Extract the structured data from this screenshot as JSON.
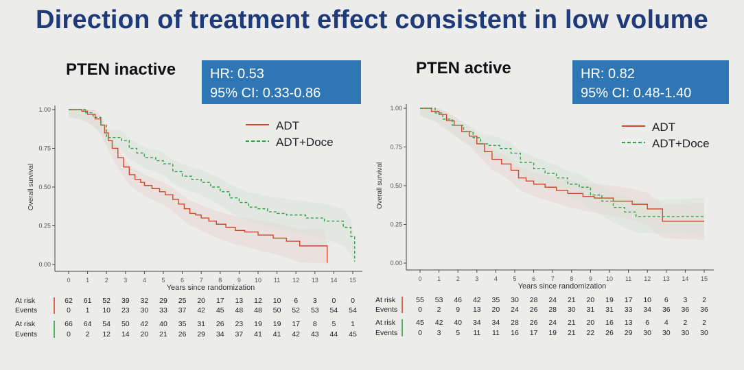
{
  "slide": {
    "title": "Direction of treatment effect consistent in low volume"
  },
  "panels": [
    {
      "title": "PTEN inactive",
      "hr_line1": "HR: 0.53",
      "hr_line2": "95% CI: 0.33-0.86"
    },
    {
      "title": "PTEN active",
      "hr_line1": "HR: 0.82",
      "hr_line2": "95% CI: 0.48-1.40"
    }
  ],
  "chart_data": [
    {
      "type": "line",
      "xlabel": "Years since randomization",
      "ylabel": "Overall survival",
      "xlim": [
        0,
        15
      ],
      "ylim": [
        0,
        1
      ],
      "x_ticks": [
        "0",
        "1",
        "2",
        "3",
        "4",
        "5",
        "6",
        "7",
        "8",
        "9",
        "10",
        "11",
        "12",
        "13",
        "14",
        "15"
      ],
      "y_ticks": [
        "0.00",
        "0.25",
        "0.50",
        "0.75",
        "1.00"
      ],
      "legend_position": "top-right",
      "series": [
        {
          "name": "ADT",
          "color": "#d0472b",
          "style": "solid",
          "x": [
            0,
            0.7,
            1.0,
            1.4,
            1.7,
            1.9,
            2.1,
            2.3,
            2.6,
            2.9,
            3.2,
            3.5,
            3.8,
            4.0,
            4.4,
            4.8,
            5.1,
            5.5,
            5.8,
            6.1,
            6.4,
            6.7,
            7.0,
            7.4,
            7.8,
            8.3,
            8.8,
            9.3,
            10.0,
            10.8,
            11.5,
            12.2,
            13.5,
            13.65
          ],
          "y": [
            1.0,
            0.99,
            0.97,
            0.94,
            0.9,
            0.85,
            0.8,
            0.75,
            0.69,
            0.63,
            0.58,
            0.55,
            0.53,
            0.51,
            0.49,
            0.47,
            0.45,
            0.42,
            0.39,
            0.36,
            0.33,
            0.32,
            0.3,
            0.28,
            0.26,
            0.24,
            0.22,
            0.21,
            0.19,
            0.17,
            0.15,
            0.12,
            0.12,
            0.01
          ]
        },
        {
          "name": "ADT+Doce",
          "color": "#2e9e48",
          "style": "dashed",
          "x": [
            0,
            0.9,
            1.3,
            1.7,
            2.0,
            2.8,
            3.2,
            3.6,
            4.0,
            4.6,
            5.0,
            5.5,
            6.0,
            6.5,
            7.0,
            7.5,
            8.0,
            8.5,
            9.0,
            9.5,
            10.0,
            10.5,
            11.0,
            11.5,
            12.5,
            13.5,
            14.5,
            14.9,
            15.1
          ],
          "y": [
            1.0,
            0.98,
            0.95,
            0.9,
            0.82,
            0.8,
            0.75,
            0.72,
            0.69,
            0.67,
            0.65,
            0.6,
            0.57,
            0.55,
            0.53,
            0.5,
            0.47,
            0.43,
            0.4,
            0.37,
            0.36,
            0.34,
            0.33,
            0.32,
            0.3,
            0.28,
            0.24,
            0.18,
            0.02
          ]
        }
      ],
      "risk_table": {
        "labels": [
          "At risk",
          "Events"
        ],
        "ADT": {
          "at_risk": [
            "62",
            "61",
            "52",
            "39",
            "32",
            "29",
            "25",
            "20",
            "17",
            "13",
            "12",
            "10",
            "6",
            "3",
            "0",
            "0"
          ],
          "events": [
            "0",
            "1",
            "10",
            "23",
            "30",
            "33",
            "37",
            "42",
            "45",
            "48",
            "48",
            "50",
            "52",
            "53",
            "54",
            "54"
          ]
        },
        "ADT+Doce": {
          "at_risk": [
            "66",
            "64",
            "54",
            "50",
            "42",
            "40",
            "35",
            "31",
            "26",
            "23",
            "19",
            "19",
            "17",
            "8",
            "5",
            "1"
          ],
          "events": [
            "0",
            "2",
            "12",
            "14",
            "20",
            "21",
            "26",
            "29",
            "34",
            "37",
            "41",
            "41",
            "42",
            "43",
            "44",
            "45"
          ]
        }
      }
    },
    {
      "type": "line",
      "xlabel": "Years since randomization",
      "ylabel": "Overall survival",
      "xlim": [
        0,
        15
      ],
      "ylim": [
        0,
        1
      ],
      "x_ticks": [
        "0",
        "1",
        "2",
        "3",
        "4",
        "5",
        "6",
        "7",
        "8",
        "9",
        "10",
        "11",
        "12",
        "13",
        "14",
        "15"
      ],
      "y_ticks": [
        "0.00",
        "0.25",
        "0.50",
        "0.75",
        "1.00"
      ],
      "legend_position": "top-right",
      "series": [
        {
          "name": "ADT",
          "color": "#d0472b",
          "style": "solid",
          "x": [
            0,
            0.6,
            1.0,
            1.4,
            1.8,
            2.2,
            2.6,
            3.0,
            3.4,
            3.8,
            4.3,
            4.8,
            5.2,
            5.6,
            6.0,
            6.6,
            7.2,
            7.8,
            8.6,
            9.2,
            10.2,
            11.2,
            12.0,
            12.8,
            14.0,
            15.0
          ],
          "y": [
            1.0,
            0.98,
            0.96,
            0.92,
            0.89,
            0.85,
            0.82,
            0.77,
            0.72,
            0.67,
            0.64,
            0.6,
            0.55,
            0.53,
            0.51,
            0.49,
            0.47,
            0.45,
            0.43,
            0.42,
            0.4,
            0.38,
            0.35,
            0.27,
            0.27,
            0.27
          ]
        },
        {
          "name": "ADT+Doce",
          "color": "#2e9e48",
          "style": "dashed",
          "x": [
            0,
            0.8,
            1.2,
            1.7,
            2.3,
            2.8,
            3.2,
            3.6,
            4.2,
            4.8,
            5.3,
            6.0,
            6.6,
            7.2,
            7.8,
            8.4,
            9.0,
            9.6,
            10.2,
            10.8,
            11.4,
            12.5,
            13.5,
            15.0
          ],
          "y": [
            1.0,
            0.97,
            0.93,
            0.89,
            0.85,
            0.81,
            0.77,
            0.76,
            0.74,
            0.71,
            0.65,
            0.61,
            0.58,
            0.55,
            0.51,
            0.49,
            0.44,
            0.4,
            0.36,
            0.33,
            0.3,
            0.3,
            0.3,
            0.3
          ]
        }
      ],
      "risk_table": {
        "labels": [
          "At risk",
          "Events"
        ],
        "ADT": {
          "at_risk": [
            "55",
            "53",
            "46",
            "42",
            "35",
            "30",
            "28",
            "24",
            "21",
            "20",
            "19",
            "17",
            "10",
            "6",
            "3",
            "2"
          ],
          "events": [
            "0",
            "2",
            "9",
            "13",
            "20",
            "24",
            "26",
            "28",
            "30",
            "31",
            "31",
            "33",
            "34",
            "36",
            "36",
            "36"
          ]
        },
        "ADT+Doce": {
          "at_risk": [
            "45",
            "42",
            "40",
            "34",
            "34",
            "28",
            "26",
            "24",
            "21",
            "20",
            "16",
            "13",
            "6",
            "4",
            "2",
            "2"
          ],
          "events": [
            "0",
            "3",
            "5",
            "11",
            "11",
            "16",
            "17",
            "19",
            "21",
            "22",
            "26",
            "29",
            "30",
            "30",
            "30",
            "30"
          ]
        }
      }
    }
  ]
}
